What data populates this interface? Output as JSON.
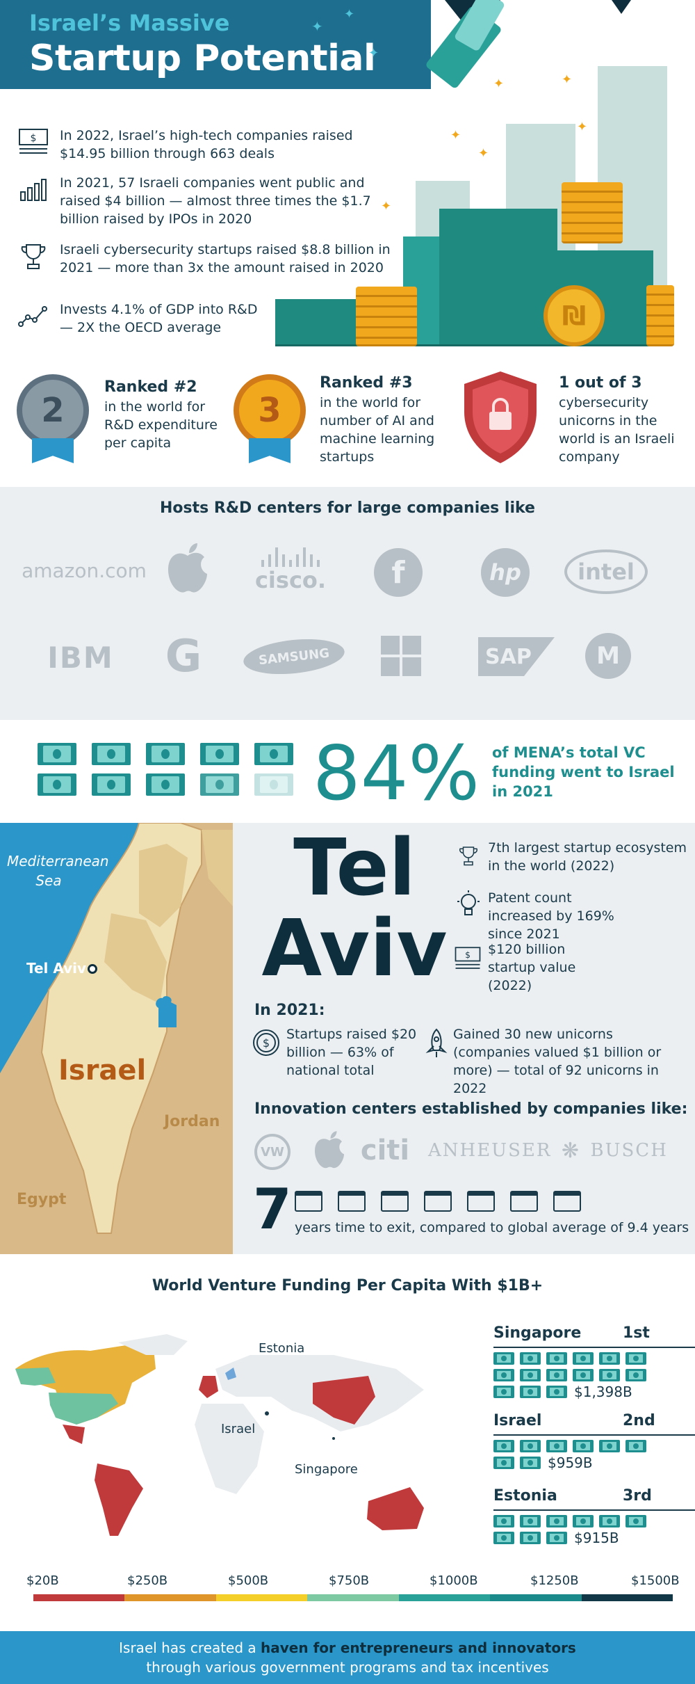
{
  "header": {
    "title_line1": "Israel’s Massive",
    "title_line2": "Startup Potential"
  },
  "facts": [
    {
      "icon": "money-bill-icon",
      "text": "In 2022, Israel’s high-tech companies raised $14.95 billion through 663 deals"
    },
    {
      "icon": "bar-chart-icon",
      "text": "In 2021, 57 Israeli companies went public and raised $4 billion — almost three times the $1.7 billion raised by IPOs in 2020"
    },
    {
      "icon": "trophy-icon",
      "text": "Israeli cybersecurity startups raised $8.8 billion in 2021 — more than 3x the amount raised in 2020"
    },
    {
      "icon": "line-chart-icon",
      "text": "Invests 4.1% of GDP into R&D — 2X the OECD average"
    }
  ],
  "rankings": [
    {
      "badge": "2",
      "title": "Ranked #2",
      "text": "in the world for R&D expenditure per capita"
    },
    {
      "badge": "3",
      "title": "Ranked #3",
      "text": "in the world for number of AI and machine learning startups"
    },
    {
      "badge": "lock",
      "title": "1 out of 3",
      "text": "cybersecurity unicorns in the world is an Israeli company"
    }
  ],
  "rd_centers": {
    "title": "Hosts R&D centers for large companies like",
    "logos_row1": [
      "amazon.com",
      "",
      "cisco.",
      "f",
      "hp",
      "intel"
    ],
    "logos_row2": [
      "IBM",
      "G",
      "SAMSUNG",
      "",
      "SAP",
      "M"
    ]
  },
  "vc": {
    "value": "84%",
    "text": "of MENA’s total VC funding went to Israel in 2021"
  },
  "map": {
    "sea": "Mediterranean Sea",
    "city": "Tel Aviv",
    "country": "Israel",
    "jordan": "Jordan",
    "egypt": "Egypt"
  },
  "tel_aviv": {
    "title_line1": "Tel",
    "title_line2": "Aviv",
    "facts": [
      {
        "icon": "trophy-icon",
        "text": "7th largest startup ecosystem in the world (2022)"
      },
      {
        "icon": "lightbulb-icon",
        "text": "Patent count increased by 169% since 2021"
      },
      {
        "icon": "money-bill-icon",
        "text": "$120 billion startup value (2022)"
      }
    ],
    "in_2021_label": "In 2021:",
    "in_2021": [
      {
        "icon": "dollar-coin-icon",
        "text": "Startups raised $20 billion — 63% of national total"
      },
      {
        "icon": "rocket-icon",
        "text": "Gained 30 new unicorns (companies valued $1 billion or more) — total of 92 unicorns in 2022"
      }
    ],
    "innovation_label": "Innovation centers established by companies like:",
    "innovation_logos": [
      "VW",
      "",
      "citi",
      "ANHEUSER",
      "BUSCH"
    ],
    "exit_years": "7",
    "exit_text": "years time to exit, compared to global average of 9.4 years"
  },
  "world": {
    "title": "World Venture Funding Per Capita With $1B+",
    "map_labels": {
      "estonia": "Estonia",
      "israel": "Israel",
      "singapore": "Singapore"
    },
    "ranks": [
      {
        "country": "Singapore",
        "rank": "1st",
        "value": "$1,398B",
        "bills": 15
      },
      {
        "country": "Israel",
        "rank": "2nd",
        "value": "$959B",
        "bills": 8
      },
      {
        "country": "Estonia",
        "rank": "3rd",
        "value": "$915B",
        "bills": 9
      }
    ],
    "scale": [
      "$20B",
      "$250B",
      "$500B",
      "$750B",
      "$1000B",
      "$1250B",
      "$1500B"
    ],
    "scale_colors": [
      "#c0393b",
      "#e0952a",
      "#f4cf2a",
      "#7cc9a2",
      "#2aa198",
      "#1b8a8a",
      "#123747"
    ]
  },
  "footer": {
    "pre": "Israel has created a ",
    "bold": "haven for entrepreneurs and innovators",
    "line2": "through various government programs and tax incentives"
  }
}
